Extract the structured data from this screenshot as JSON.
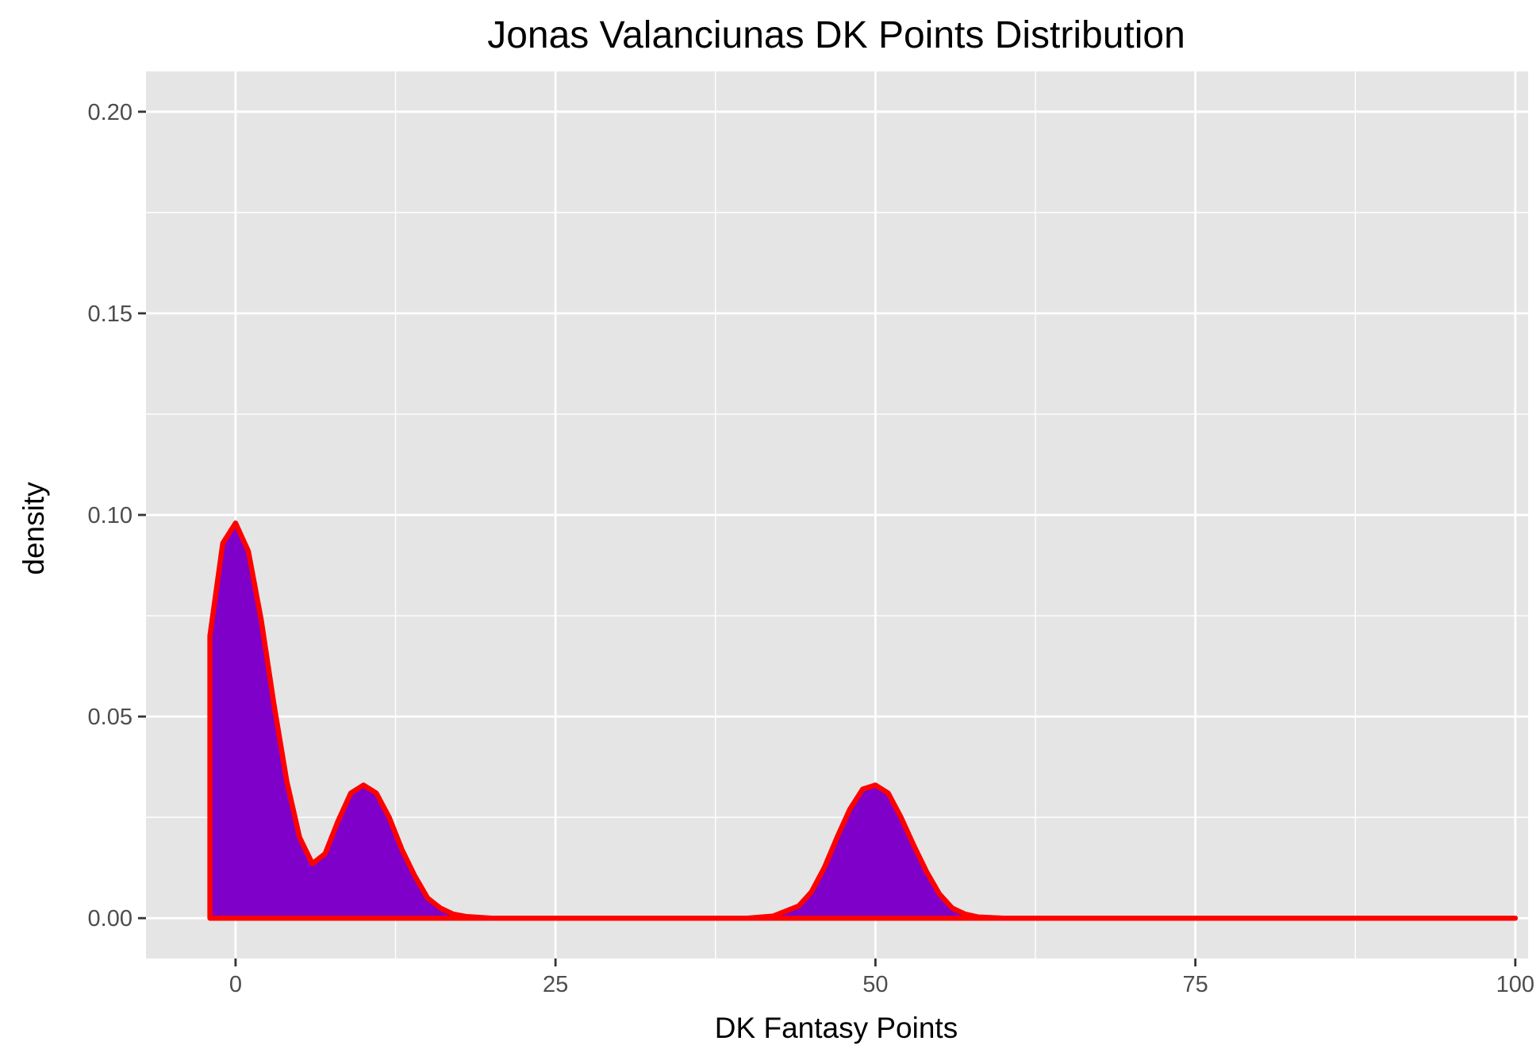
{
  "chart_data": {
    "type": "area",
    "title": "Jonas Valanciunas DK Points Distribution",
    "xlabel": "DK Fantasy Points",
    "ylabel": "density",
    "xlim": [
      -7,
      101
    ],
    "ylim": [
      -0.01,
      0.21
    ],
    "x_ticks": [
      0,
      25,
      50,
      75,
      100
    ],
    "x_tick_labels": [
      "0",
      "25",
      "50",
      "75",
      "100"
    ],
    "y_ticks": [
      0.0,
      0.05,
      0.1,
      0.15,
      0.2
    ],
    "y_tick_labels": [
      "0.00",
      "0.05",
      "0.10",
      "0.15",
      "0.20"
    ],
    "x_minor": [
      12.5,
      37.5,
      62.5,
      87.5
    ],
    "y_minor": [
      0.025,
      0.075,
      0.125,
      0.175
    ],
    "grid": true,
    "background_color": "#e5e5e5",
    "fill_color": "#7f00c8",
    "line_color": "#ff0000",
    "series": [
      {
        "x": [
          -2,
          -1,
          0,
          1,
          2,
          3,
          4,
          5,
          6,
          7,
          8,
          9,
          10,
          11,
          12,
          13,
          14,
          15,
          16,
          17,
          18,
          20,
          25,
          30,
          35,
          40,
          42,
          44,
          45,
          46,
          47,
          48,
          49,
          50,
          51,
          52,
          53,
          54,
          55,
          56,
          57,
          58,
          60,
          65,
          70,
          75,
          80,
          85,
          90,
          95,
          100
        ],
        "y": [
          0.07,
          0.093,
          0.098,
          0.091,
          0.074,
          0.053,
          0.034,
          0.02,
          0.0135,
          0.016,
          0.024,
          0.031,
          0.033,
          0.031,
          0.025,
          0.017,
          0.0105,
          0.005,
          0.0025,
          0.001,
          0.0004,
          0.0,
          0.0,
          0.0,
          0.0,
          0.0,
          0.0005,
          0.003,
          0.0065,
          0.0125,
          0.02,
          0.027,
          0.032,
          0.033,
          0.031,
          0.025,
          0.018,
          0.0115,
          0.006,
          0.0025,
          0.001,
          0.0003,
          0.0,
          0.0,
          0.0,
          0.0,
          0.0,
          0.0,
          0.0,
          0.0,
          0.0
        ]
      }
    ]
  }
}
